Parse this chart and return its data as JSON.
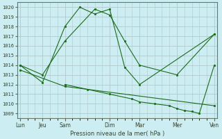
{
  "title": "Pression niveau de la mer( hPa )",
  "bg_color": "#cceef2",
  "grid_color": "#b0c8cc",
  "line_color": "#1a6b1a",
  "ylim": [
    1008.5,
    1020.5
  ],
  "yticks": [
    1009,
    1010,
    1011,
    1012,
    1013,
    1014,
    1015,
    1016,
    1017,
    1018,
    1019,
    1020
  ],
  "xlim": [
    -0.2,
    13.2
  ],
  "major_x_positions": [
    0,
    1.5,
    3,
    6,
    8,
    10.5,
    13
  ],
  "major_x_labels": [
    "Lun",
    "Jeu",
    "Sam",
    "Dim",
    "Mar",
    "Mer",
    "Ven"
  ],
  "series": [
    {
      "x": [
        0,
        1.5,
        3,
        5,
        6,
        7,
        8,
        10.5,
        13
      ],
      "y": [
        1014.0,
        1013.0,
        1016.5,
        1019.8,
        1019.2,
        1016.5,
        1014.0,
        1013.0,
        1017.2
      ]
    },
    {
      "x": [
        0,
        1.5,
        3,
        4,
        5,
        6,
        7,
        8,
        13
      ],
      "y": [
        1014.0,
        1012.2,
        1018.0,
        1020.0,
        1019.3,
        1019.8,
        1013.8,
        1012.0,
        1017.2
      ]
    },
    {
      "x": [
        3,
        4.5,
        6,
        7.5,
        8,
        9,
        10,
        10.5,
        11,
        11.5,
        12,
        13
      ],
      "y": [
        1012.0,
        1011.5,
        1011.0,
        1010.5,
        1010.2,
        1010.0,
        1009.8,
        1009.5,
        1009.3,
        1009.2,
        1009.0,
        1014.0
      ]
    },
    {
      "x": [
        0,
        3,
        13
      ],
      "y": [
        1013.5,
        1011.8,
        1009.8
      ]
    }
  ],
  "minor_x_step": 0.5
}
